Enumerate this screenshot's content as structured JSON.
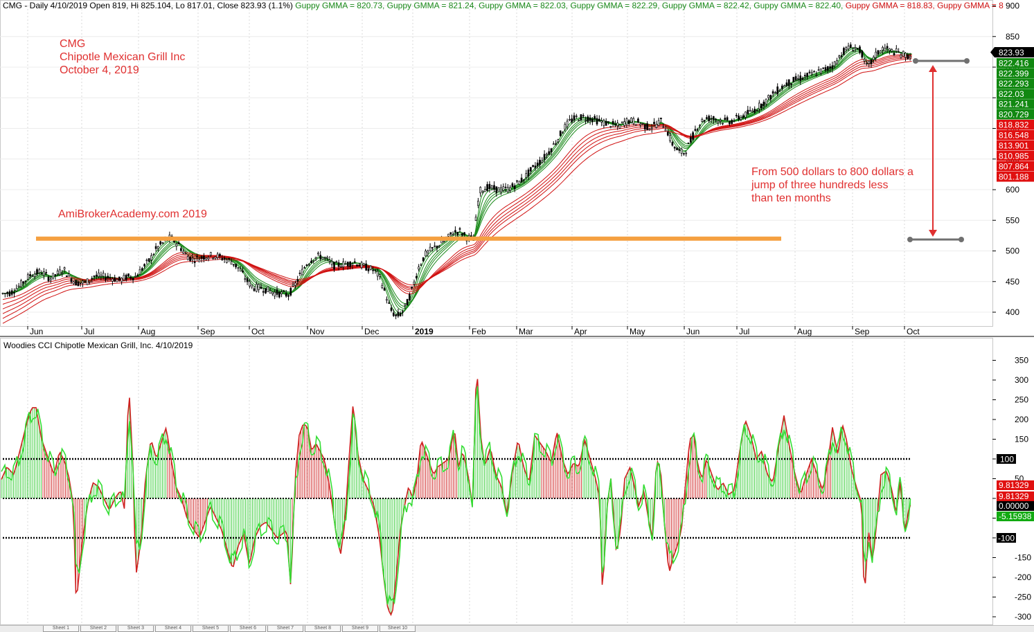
{
  "header": {
    "prefix": "CMG - Daily 4/10/2019 Open 819, Hi 825.104, Lo 817.01, Close 823.93 (1.1%)",
    "gmma": [
      {
        "text": "Guppy GMMA = 820.73,",
        "color": "#1a8a1a"
      },
      {
        "text": "Guppy GMMA = 821.24,",
        "color": "#1a8a1a"
      },
      {
        "text": "Guppy GMMA = 822.03,",
        "color": "#1a8a1a"
      },
      {
        "text": "Guppy GMMA = 822.29,",
        "color": "#1a8a1a"
      },
      {
        "text": "Guppy GMMA = 822.42,",
        "color": "#1a8a1a"
      },
      {
        "text": "Guppy GMMA = 822.40,",
        "color": "#1a8a1a"
      },
      {
        "text": "Guppy GMMA = 818.83,",
        "color": "#d01010"
      },
      {
        "text": "Guppy GMMA = 8",
        "color": "#d01010"
      }
    ]
  },
  "annotations": {
    "ticker": "CMG",
    "company": "Chipotle Mexican Grill Inc",
    "date": "October 4, 2019",
    "watermark": "AmiBrokerAcademy.com   2019",
    "note_line1": "From 500 dollars to 800 dollars a",
    "note_line2": "jump of three hundreds less",
    "note_line3": "than ten months"
  },
  "cci_title": "Woodies CCI  Chipotle Mexican Grill, Inc. 4/10/2019",
  "tabs": [
    "Sheet 1",
    "Sheet 2",
    "Sheet 3",
    "Sheet 4",
    "Sheet 5",
    "Sheet 6",
    "Sheet 7",
    "Sheet 8",
    "Sheet 9",
    "Sheet 10"
  ],
  "chart_data": [
    {
      "type": "candlestick",
      "title": "CMG - Daily 4/10/2019",
      "ylim": [
        375,
        905
      ],
      "yticks": [
        400,
        450,
        500,
        550,
        600,
        650,
        700,
        750,
        800,
        850,
        900
      ],
      "xticks": [
        "Jun",
        "Jul",
        "Aug",
        "Sep",
        "Oct",
        "Nov",
        "Dec",
        "2019",
        "Feb",
        "Mar",
        "Apr",
        "May",
        "Jun",
        "Jul",
        "Aug",
        "Sep",
        "Oct"
      ],
      "price_path": [
        [
          0,
          430
        ],
        [
          16,
          432
        ],
        [
          30,
          445
        ],
        [
          45,
          462
        ],
        [
          60,
          466
        ],
        [
          72,
          455
        ],
        [
          82,
          462
        ],
        [
          92,
          470
        ],
        [
          100,
          458
        ],
        [
          110,
          448
        ],
        [
          124,
          448
        ],
        [
          136,
          459
        ],
        [
          150,
          458
        ],
        [
          162,
          456
        ],
        [
          172,
          452
        ],
        [
          185,
          458
        ],
        [
          196,
          458
        ],
        [
          206,
          472
        ],
        [
          216,
          485
        ],
        [
          226,
          504
        ],
        [
          236,
          514
        ],
        [
          246,
          522
        ],
        [
          258,
          510
        ],
        [
          268,
          494
        ],
        [
          278,
          486
        ],
        [
          288,
          488
        ],
        [
          298,
          492
        ],
        [
          310,
          493
        ],
        [
          322,
          488
        ],
        [
          334,
          483
        ],
        [
          346,
          470
        ],
        [
          356,
          452
        ],
        [
          366,
          440
        ],
        [
          376,
          440
        ],
        [
          386,
          436
        ],
        [
          396,
          432
        ],
        [
          406,
          430
        ],
        [
          416,
          428
        ],
        [
          424,
          440
        ],
        [
          432,
          458
        ],
        [
          442,
          478
        ],
        [
          452,
          488
        ],
        [
          462,
          492
        ],
        [
          472,
          486
        ],
        [
          482,
          476
        ],
        [
          492,
          478
        ],
        [
          502,
          479
        ],
        [
          512,
          482
        ],
        [
          522,
          476
        ],
        [
          532,
          472
        ],
        [
          540,
          468
        ],
        [
          548,
          458
        ],
        [
          556,
          432
        ],
        [
          564,
          404
        ],
        [
          572,
          393
        ],
        [
          580,
          398
        ],
        [
          588,
          415
        ],
        [
          596,
          440
        ],
        [
          604,
          472
        ],
        [
          614,
          494
        ],
        [
          624,
          503
        ],
        [
          634,
          510
        ],
        [
          644,
          518
        ],
        [
          654,
          530
        ],
        [
          664,
          532
        ],
        [
          674,
          522
        ],
        [
          684,
          520
        ],
        [
          690,
          578
        ],
        [
          694,
          600
        ],
        [
          704,
          604
        ],
        [
          714,
          601
        ],
        [
          724,
          600
        ],
        [
          734,
          601
        ],
        [
          744,
          608
        ],
        [
          754,
          616
        ],
        [
          764,
          628
        ],
        [
          774,
          640
        ],
        [
          784,
          650
        ],
        [
          794,
          664
        ],
        [
          804,
          680
        ],
        [
          814,
          700
        ],
        [
          824,
          713
        ],
        [
          834,
          718
        ],
        [
          844,
          718
        ],
        [
          854,
          716
        ],
        [
          864,
          712
        ],
        [
          874,
          709
        ],
        [
          884,
          706
        ],
        [
          894,
          703
        ],
        [
          904,
          712
        ],
        [
          914,
          712
        ],
        [
          924,
          709
        ],
        [
          934,
          702
        ],
        [
          944,
          704
        ],
        [
          954,
          712
        ],
        [
          962,
          700
        ],
        [
          970,
          676
        ],
        [
          980,
          662
        ],
        [
          988,
          660
        ],
        [
          996,
          676
        ],
        [
          1006,
          702
        ],
        [
          1016,
          715
        ],
        [
          1026,
          717
        ],
        [
          1036,
          714
        ],
        [
          1046,
          712
        ],
        [
          1056,
          712
        ],
        [
          1066,
          717
        ],
        [
          1076,
          722
        ],
        [
          1086,
          728
        ],
        [
          1096,
          736
        ],
        [
          1106,
          745
        ],
        [
          1116,
          756
        ],
        [
          1126,
          765
        ],
        [
          1136,
          773
        ],
        [
          1146,
          778
        ],
        [
          1156,
          782
        ],
        [
          1166,
          786
        ],
        [
          1176,
          790
        ],
        [
          1186,
          794
        ],
        [
          1196,
          798
        ],
        [
          1206,
          806
        ],
        [
          1216,
          824
        ],
        [
          1226,
          832
        ],
        [
          1236,
          832
        ],
        [
          1244,
          825
        ],
        [
          1250,
          800
        ],
        [
          1258,
          808
        ],
        [
          1266,
          822
        ],
        [
          1276,
          832
        ],
        [
          1286,
          826
        ],
        [
          1296,
          824
        ],
        [
          1306,
          820
        ],
        [
          1312,
          818
        ],
        [
          1318,
          824
        ]
      ],
      "gmma_short": {
        "color": "#1a8a1a",
        "labels": [
          "822.416",
          "822.399",
          "822.293",
          "822.03",
          "821.241",
          "820.729"
        ]
      },
      "gmma_long": {
        "color": "#d01010",
        "labels": [
          "818.832",
          "816.548",
          "813.901",
          "810.985",
          "807.864",
          "801.188"
        ]
      },
      "last_close": 823.93,
      "last_close_label": "823.93",
      "support_line": 520,
      "annotation_range": [
        500,
        800
      ]
    },
    {
      "type": "bar",
      "title": "Woodies CCI  Chipotle Mexican Grill, Inc. 4/10/2019",
      "ylim": [
        -310,
        370
      ],
      "yticks": [
        -300,
        -250,
        -200,
        -150,
        -100,
        -50,
        0,
        50,
        100,
        150,
        200,
        250,
        300,
        350
      ],
      "levels": [
        100,
        -100
      ],
      "level_labels": [
        "100",
        "-100"
      ],
      "cci_path": [
        [
          0,
          40
        ],
        [
          10,
          80
        ],
        [
          20,
          60
        ],
        [
          30,
          130
        ],
        [
          40,
          200
        ],
        [
          46,
          230
        ],
        [
          52,
          230
        ],
        [
          60,
          150
        ],
        [
          70,
          100
        ],
        [
          78,
          60
        ],
        [
          86,
          120
        ],
        [
          94,
          90
        ],
        [
          100,
          50
        ],
        [
          106,
          -20
        ],
        [
          110,
          -270
        ],
        [
          118,
          -120
        ],
        [
          126,
          -20
        ],
        [
          134,
          40
        ],
        [
          142,
          30
        ],
        [
          150,
          0
        ],
        [
          158,
          -30
        ],
        [
          166,
          0
        ],
        [
          174,
          20
        ],
        [
          180,
          -30
        ],
        [
          186,
          290
        ],
        [
          192,
          80
        ],
        [
          196,
          -200
        ],
        [
          204,
          -100
        ],
        [
          210,
          50
        ],
        [
          218,
          150
        ],
        [
          226,
          100
        ],
        [
          234,
          150
        ],
        [
          240,
          180
        ],
        [
          246,
          110
        ],
        [
          254,
          30
        ],
        [
          262,
          0
        ],
        [
          270,
          -50
        ],
        [
          280,
          -80
        ],
        [
          288,
          -100
        ],
        [
          296,
          -60
        ],
        [
          304,
          -20
        ],
        [
          312,
          -50
        ],
        [
          320,
          -80
        ],
        [
          328,
          -130
        ],
        [
          336,
          -180
        ],
        [
          344,
          -120
        ],
        [
          352,
          -90
        ],
        [
          360,
          -170
        ],
        [
          368,
          -100
        ],
        [
          376,
          -70
        ],
        [
          384,
          -60
        ],
        [
          392,
          -80
        ],
        [
          400,
          -100
        ],
        [
          408,
          -90
        ],
        [
          414,
          -80
        ],
        [
          420,
          -230
        ],
        [
          426,
          50
        ],
        [
          432,
          160
        ],
        [
          438,
          190
        ],
        [
          444,
          180
        ],
        [
          450,
          120
        ],
        [
          456,
          140
        ],
        [
          462,
          120
        ],
        [
          468,
          100
        ],
        [
          474,
          50
        ],
        [
          480,
          -20
        ],
        [
          486,
          -100
        ],
        [
          492,
          -140
        ],
        [
          498,
          -60
        ],
        [
          504,
          100
        ],
        [
          510,
          245
        ],
        [
          516,
          120
        ],
        [
          524,
          50
        ],
        [
          532,
          20
        ],
        [
          540,
          -20
        ],
        [
          548,
          -100
        ],
        [
          554,
          -200
        ],
        [
          560,
          -280
        ],
        [
          566,
          -300
        ],
        [
          572,
          -200
        ],
        [
          578,
          -80
        ],
        [
          584,
          -20
        ],
        [
          590,
          30
        ],
        [
          596,
          0
        ],
        [
          602,
          50
        ],
        [
          608,
          150
        ],
        [
          614,
          120
        ],
        [
          620,
          90
        ],
        [
          626,
          60
        ],
        [
          632,
          80
        ],
        [
          640,
          90
        ],
        [
          648,
          100
        ],
        [
          656,
          180
        ],
        [
          662,
          80
        ],
        [
          668,
          120
        ],
        [
          676,
          60
        ],
        [
          682,
          -20
        ],
        [
          686,
          200
        ],
        [
          688,
          350
        ],
        [
          694,
          160
        ],
        [
          700,
          80
        ],
        [
          708,
          130
        ],
        [
          716,
          60
        ],
        [
          724,
          30
        ],
        [
          732,
          -40
        ],
        [
          740,
          70
        ],
        [
          748,
          150
        ],
        [
          756,
          80
        ],
        [
          764,
          40
        ],
        [
          772,
          160
        ],
        [
          780,
          140
        ],
        [
          788,
          120
        ],
        [
          796,
          90
        ],
        [
          804,
          170
        ],
        [
          812,
          100
        ],
        [
          820,
          60
        ],
        [
          828,
          90
        ],
        [
          836,
          80
        ],
        [
          844,
          150
        ],
        [
          852,
          100
        ],
        [
          860,
          50
        ],
        [
          866,
          0
        ],
        [
          870,
          -250
        ],
        [
          876,
          -30
        ],
        [
          882,
          50
        ],
        [
          890,
          -140
        ],
        [
          896,
          -80
        ],
        [
          902,
          50
        ],
        [
          910,
          80
        ],
        [
          916,
          30
        ],
        [
          922,
          -20
        ],
        [
          930,
          20
        ],
        [
          936,
          -50
        ],
        [
          942,
          -100
        ],
        [
          948,
          100
        ],
        [
          954,
          70
        ],
        [
          960,
          -80
        ],
        [
          966,
          -190
        ],
        [
          972,
          -150
        ],
        [
          978,
          -120
        ],
        [
          984,
          -80
        ],
        [
          990,
          40
        ],
        [
          996,
          150
        ],
        [
          1002,
          160
        ],
        [
          1008,
          80
        ],
        [
          1014,
          50
        ],
        [
          1020,
          100
        ],
        [
          1028,
          60
        ],
        [
          1036,
          20
        ],
        [
          1044,
          40
        ],
        [
          1052,
          10
        ],
        [
          1060,
          20
        ],
        [
          1068,
          120
        ],
        [
          1076,
          200
        ],
        [
          1084,
          160
        ],
        [
          1092,
          100
        ],
        [
          1100,
          120
        ],
        [
          1108,
          60
        ],
        [
          1116,
          40
        ],
        [
          1124,
          130
        ],
        [
          1132,
          210
        ],
        [
          1140,
          130
        ],
        [
          1148,
          60
        ],
        [
          1156,
          10
        ],
        [
          1164,
          60
        ],
        [
          1172,
          100
        ],
        [
          1180,
          60
        ],
        [
          1188,
          20
        ],
        [
          1196,
          100
        ],
        [
          1202,
          180
        ],
        [
          1210,
          110
        ],
        [
          1216,
          190
        ],
        [
          1222,
          150
        ],
        [
          1230,
          70
        ],
        [
          1238,
          20
        ],
        [
          1244,
          -10
        ],
        [
          1248,
          -260
        ],
        [
          1254,
          -80
        ],
        [
          1260,
          -160
        ],
        [
          1266,
          -60
        ],
        [
          1272,
          60
        ],
        [
          1280,
          70
        ],
        [
          1288,
          20
        ],
        [
          1294,
          -40
        ],
        [
          1300,
          50
        ],
        [
          1306,
          -90
        ],
        [
          1312,
          -30
        ],
        [
          1316,
          -10
        ]
      ],
      "current_values": [
        "9.81329",
        "9.81329",
        "0.00000",
        "-5.15938"
      ]
    }
  ]
}
